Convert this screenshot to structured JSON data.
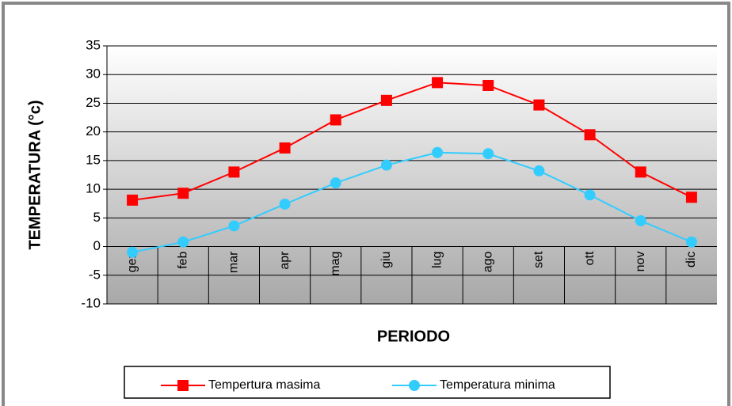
{
  "chart_data": {
    "type": "line",
    "x_label": "PERIODO",
    "y_label": "TEMPERATURA  (°c)",
    "categories": [
      "gen",
      "feb",
      "mar",
      "apr",
      "mag",
      "giu",
      "lug",
      "ago",
      "set",
      "ott",
      "nov",
      "dic"
    ],
    "series": [
      {
        "name": "Tempertura masima",
        "color": "#ff0000",
        "marker": "square",
        "values": [
          8.1,
          9.3,
          13,
          17.2,
          22.1,
          25.5,
          28.6,
          28.1,
          24.7,
          19.5,
          13,
          8.6
        ]
      },
      {
        "name": "Temperatura minima",
        "color": "#33ccff",
        "marker": "circle",
        "values": [
          -1,
          0.8,
          3.6,
          7.4,
          11.1,
          14.2,
          16.4,
          16.2,
          13.2,
          9,
          4.5,
          0.8
        ]
      }
    ],
    "ylim": [
      -10,
      35
    ],
    "yticks": [
      -10,
      -5,
      0,
      5,
      10,
      15,
      20,
      25,
      30,
      35
    ],
    "grid": true,
    "legend": "bottom"
  }
}
